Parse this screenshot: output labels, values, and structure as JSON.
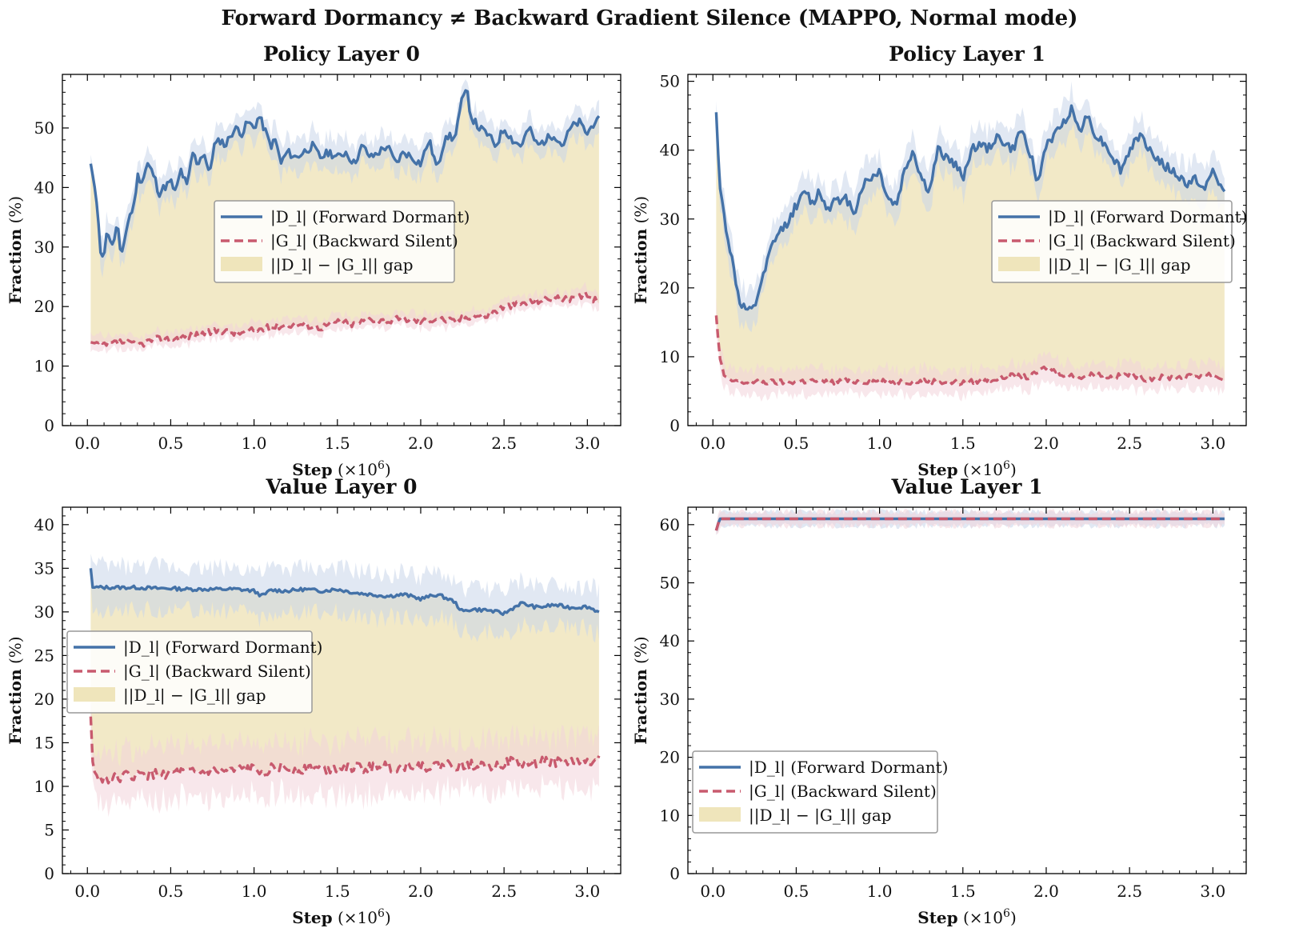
{
  "figure": {
    "title": "Forward Dormancy ≠ Backward Gradient Silence (MAPPO, Normal mode)"
  },
  "colors": {
    "forward": "#4472a8",
    "backward": "#c85a6e",
    "gap": "#ede2b4",
    "forward_band": "#c9d6ea",
    "backward_band": "#f2d3da"
  },
  "legend": {
    "forward_label": "|D_l| (Forward Dormant)",
    "backward_label": "|G_l| (Backward Silent)",
    "gap_label": "||D_l| − |G_l|| gap"
  },
  "chart_data": [
    {
      "type": "line",
      "title": "Policy Layer 0",
      "xlabel": "Step (×10^6)",
      "ylabel": "Fraction (%)",
      "xlim": [
        -0.15,
        3.2
      ],
      "ylim": [
        0,
        59
      ],
      "xticks": [
        0.0,
        0.5,
        1.0,
        1.5,
        2.0,
        2.5,
        3.0
      ],
      "yticks": [
        0,
        10,
        20,
        30,
        40,
        50
      ],
      "legend_position": "center-right",
      "series": [
        {
          "name": "|D_l| (Forward Dormant)",
          "x": [
            0.02,
            0.05,
            0.08,
            0.1,
            0.12,
            0.15,
            0.18,
            0.2,
            0.22,
            0.25,
            0.28,
            0.3,
            0.33,
            0.36,
            0.4,
            0.43,
            0.46,
            0.5,
            0.53,
            0.56,
            0.6,
            0.63,
            0.66,
            0.7,
            0.73,
            0.76,
            0.8,
            0.83,
            0.86,
            0.9,
            0.93,
            0.96,
            1.0,
            1.03,
            1.06,
            1.1,
            1.13,
            1.16,
            1.2,
            1.25,
            1.3,
            1.35,
            1.4,
            1.45,
            1.5,
            1.55,
            1.6,
            1.65,
            1.7,
            1.75,
            1.8,
            1.85,
            1.9,
            1.95,
            2.0,
            2.05,
            2.1,
            2.15,
            2.2,
            2.25,
            2.28,
            2.3,
            2.35,
            2.4,
            2.45,
            2.5,
            2.55,
            2.6,
            2.65,
            2.7,
            2.75,
            2.8,
            2.85,
            2.9,
            2.95,
            3.0,
            3.04,
            3.07
          ],
          "values": [
            44,
            39,
            29,
            29,
            33,
            30,
            34,
            28,
            31,
            35,
            37,
            42,
            41,
            44,
            42,
            39,
            40,
            41,
            39,
            43,
            40,
            46,
            44,
            46,
            42,
            47,
            48,
            47,
            49,
            50,
            49,
            51,
            50,
            52,
            50,
            47,
            48,
            44,
            46,
            45,
            46,
            47,
            45,
            46,
            45,
            46,
            44,
            47,
            45,
            46,
            47,
            44,
            46,
            45,
            44,
            48,
            43,
            49,
            48,
            55,
            56,
            52,
            50,
            49,
            47,
            50,
            48,
            47,
            50,
            47,
            48,
            49,
            47,
            50,
            51,
            49,
            51,
            52
          ]
        },
        {
          "name": "|G_l| (Backward Silent)",
          "x": [
            0.02,
            0.1,
            0.2,
            0.3,
            0.4,
            0.5,
            0.6,
            0.7,
            0.8,
            0.9,
            1.0,
            1.1,
            1.2,
            1.3,
            1.4,
            1.5,
            1.6,
            1.7,
            1.8,
            1.9,
            2.0,
            2.1,
            2.2,
            2.3,
            2.4,
            2.5,
            2.6,
            2.7,
            2.8,
            2.9,
            3.0,
            3.07
          ],
          "values": [
            14,
            13.5,
            14,
            13.5,
            14.5,
            14.5,
            15,
            15.5,
            16,
            15.5,
            16,
            16.5,
            17,
            17,
            16.5,
            17.5,
            17,
            18,
            17.5,
            18,
            17.5,
            18,
            17.5,
            18.5,
            18.5,
            20,
            20.5,
            21,
            21.5,
            21,
            22,
            20.5
          ]
        }
      ],
      "gap": {
        "label": "||D_l| − |G_l|| gap"
      }
    },
    {
      "type": "line",
      "title": "Policy Layer 1",
      "xlabel": "Step (×10^6)",
      "ylabel": "Fraction (%)",
      "xlim": [
        -0.15,
        3.2
      ],
      "ylim": [
        0,
        51
      ],
      "xticks": [
        0.0,
        0.5,
        1.0,
        1.5,
        2.0,
        2.5,
        3.0
      ],
      "yticks": [
        0,
        10,
        20,
        30,
        40,
        50
      ],
      "legend_position": "upper-right",
      "series": [
        {
          "name": "|D_l| (Forward Dormant)",
          "x": [
            0.02,
            0.04,
            0.07,
            0.1,
            0.13,
            0.16,
            0.19,
            0.22,
            0.25,
            0.28,
            0.31,
            0.34,
            0.37,
            0.4,
            0.43,
            0.46,
            0.5,
            0.53,
            0.56,
            0.6,
            0.63,
            0.66,
            0.7,
            0.73,
            0.76,
            0.8,
            0.85,
            0.9,
            0.95,
            1.0,
            1.05,
            1.1,
            1.15,
            1.2,
            1.25,
            1.3,
            1.35,
            1.4,
            1.45,
            1.5,
            1.55,
            1.6,
            1.65,
            1.7,
            1.75,
            1.8,
            1.85,
            1.9,
            1.95,
            2.0,
            2.05,
            2.1,
            2.15,
            2.2,
            2.25,
            2.3,
            2.35,
            2.4,
            2.45,
            2.5,
            2.55,
            2.6,
            2.65,
            2.7,
            2.75,
            2.8,
            2.85,
            2.9,
            2.95,
            3.0,
            3.04,
            3.07
          ],
          "values": [
            45.5,
            35,
            30,
            26,
            22,
            18,
            17,
            16.5,
            17,
            20,
            22,
            25,
            27,
            28,
            29,
            30,
            32,
            33,
            34,
            32,
            34,
            33,
            31,
            34,
            32,
            33,
            31,
            35,
            36,
            37,
            33,
            32,
            37,
            40,
            36,
            34,
            40,
            39,
            38,
            36,
            40,
            41,
            40,
            42,
            41,
            40,
            43,
            40,
            35,
            41,
            42,
            44,
            46,
            43,
            45,
            42,
            41,
            39,
            37,
            40,
            42,
            41,
            39,
            38,
            37,
            36,
            35,
            36,
            34,
            37,
            35,
            34
          ]
        },
        {
          "name": "|G_l| (Backward Silent)",
          "x": [
            0.02,
            0.04,
            0.07,
            0.1,
            0.15,
            0.2,
            0.3,
            0.4,
            0.5,
            0.6,
            0.7,
            0.8,
            0.9,
            1.0,
            1.1,
            1.2,
            1.3,
            1.4,
            1.5,
            1.6,
            1.7,
            1.8,
            1.9,
            2.0,
            2.1,
            2.2,
            2.3,
            2.4,
            2.5,
            2.6,
            2.7,
            2.8,
            2.9,
            3.0,
            3.07
          ],
          "values": [
            16,
            10,
            7,
            6.5,
            6.5,
            6.2,
            6.3,
            6.3,
            6.4,
            6.5,
            6.3,
            6.5,
            6.4,
            6.5,
            6.4,
            6.4,
            6.5,
            6.3,
            6.2,
            6.5,
            6.8,
            7.2,
            7,
            8.5,
            7.5,
            7,
            7.5,
            7,
            7.5,
            6.8,
            7,
            7,
            7.2,
            7.5,
            6.5
          ]
        }
      ],
      "gap": {
        "label": "||D_l| − |G_l|| gap"
      }
    },
    {
      "type": "line",
      "title": "Value Layer 0",
      "xlabel": "Step (×10^6)",
      "ylabel": "Fraction (%)",
      "xlim": [
        -0.15,
        3.2
      ],
      "ylim": [
        0,
        42
      ],
      "xticks": [
        0.0,
        0.5,
        1.0,
        1.5,
        2.0,
        2.5,
        3.0
      ],
      "yticks": [
        0,
        5,
        10,
        15,
        20,
        25,
        30,
        35,
        40
      ],
      "legend_position": "center-left",
      "series": [
        {
          "name": "|D_l| (Forward Dormant)",
          "x": [
            0.02,
            0.03,
            0.1,
            0.2,
            0.3,
            0.4,
            0.5,
            0.6,
            0.7,
            0.8,
            0.9,
            1.0,
            1.05,
            1.1,
            1.2,
            1.3,
            1.4,
            1.5,
            1.6,
            1.7,
            1.8,
            1.9,
            2.0,
            2.1,
            2.2,
            2.25,
            2.3,
            2.4,
            2.5,
            2.6,
            2.7,
            2.8,
            2.9,
            3.0,
            3.07
          ],
          "values": [
            35,
            32.8,
            32.8,
            32.8,
            32.8,
            32.7,
            32.7,
            32.6,
            32.6,
            32.6,
            32.6,
            32.4,
            31.8,
            32.5,
            32.4,
            32.6,
            32.4,
            32.6,
            32.2,
            32.0,
            31.8,
            32.0,
            31.5,
            32.0,
            31.2,
            30.0,
            30.3,
            30.2,
            29.8,
            31.0,
            30.5,
            30.8,
            30.5,
            30.6,
            30.0
          ]
        },
        {
          "name": "|G_l| (Backward Silent)",
          "x": [
            0.02,
            0.03,
            0.05,
            0.08,
            0.15,
            0.25,
            0.35,
            0.45,
            0.55,
            0.65,
            0.75,
            0.85,
            0.95,
            1.05,
            1.15,
            1.25,
            1.35,
            1.45,
            1.55,
            1.65,
            1.75,
            1.85,
            1.95,
            2.05,
            2.15,
            2.25,
            2.35,
            2.45,
            2.55,
            2.65,
            2.75,
            2.85,
            2.95,
            3.05,
            3.07
          ],
          "values": [
            18,
            13,
            11,
            10.9,
            11,
            11.2,
            11.3,
            11.4,
            11.6,
            11.5,
            11.8,
            11.6,
            12.0,
            11.8,
            12.2,
            11.9,
            12.2,
            12.0,
            12.3,
            12.0,
            12.4,
            12.1,
            12.5,
            12.2,
            12.5,
            12.3,
            12.6,
            12.4,
            12.8,
            12.5,
            13.0,
            12.7,
            12.9,
            12.6,
            13.5
          ]
        }
      ],
      "gap": {
        "label": "||D_l| − |G_l|| gap"
      }
    },
    {
      "type": "line",
      "title": "Value Layer 1",
      "xlabel": "Step (×10^6)",
      "ylabel": "Fraction (%)",
      "xlim": [
        -0.15,
        3.2
      ],
      "ylim": [
        0,
        63
      ],
      "xticks": [
        0.0,
        0.5,
        1.0,
        1.5,
        2.0,
        2.5,
        3.0
      ],
      "yticks": [
        0,
        10,
        20,
        30,
        40,
        50,
        60
      ],
      "legend_position": "lower-left",
      "series": [
        {
          "name": "|D_l| (Forward Dormant)",
          "x": [
            0.02,
            0.04,
            0.1,
            0.5,
            1.0,
            1.5,
            2.0,
            2.5,
            3.0,
            3.07
          ],
          "values": [
            59,
            61,
            61,
            61,
            61,
            61,
            61,
            61,
            61,
            61
          ]
        },
        {
          "name": "|G_l| (Backward Silent)",
          "x": [
            0.02,
            0.04,
            0.1,
            0.5,
            1.0,
            1.5,
            2.0,
            2.5,
            3.0,
            3.07
          ],
          "values": [
            59,
            61,
            61,
            61,
            61,
            61,
            61,
            61,
            61,
            61
          ]
        }
      ],
      "gap": {
        "label": "||D_l| − |G_l|| gap"
      }
    }
  ]
}
